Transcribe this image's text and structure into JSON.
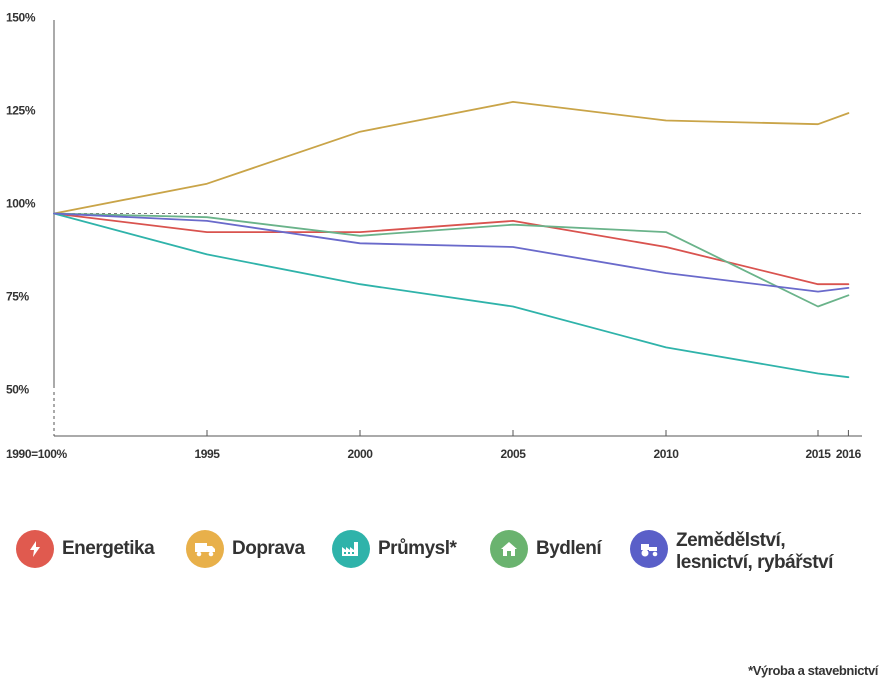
{
  "chart_data": {
    "type": "line",
    "x": [
      1990,
      1995,
      2000,
      2005,
      2010,
      2015,
      2016
    ],
    "x_tick_labels": [
      "1990=100%",
      "1995",
      "2000",
      "2005",
      "2010",
      "2015",
      "2016"
    ],
    "y_tick_values": [
      50,
      75,
      100,
      125,
      150
    ],
    "y_tick_labels": [
      "50%",
      "75%",
      "100%",
      "125%",
      "150%"
    ],
    "ylim": [
      35,
      150
    ],
    "reference_line": 100,
    "series": [
      {
        "name": "Energetika",
        "color": "#d9534f",
        "icon": "lightning-icon",
        "values": [
          100,
          95,
          95,
          98,
          91,
          81,
          81
        ]
      },
      {
        "name": "Doprava",
        "color": "#c9a448",
        "icon": "truck-icon",
        "values": [
          100,
          108,
          122,
          130,
          125,
          124,
          127
        ]
      },
      {
        "name": "Průmysl*",
        "color": "#2fb3aa",
        "icon": "factory-icon",
        "values": [
          100,
          89,
          81,
          75,
          64,
          57,
          56
        ]
      },
      {
        "name": "Bydlení",
        "color": "#6ab38a",
        "icon": "house-icon",
        "values": [
          100,
          99,
          94,
          97,
          95,
          75,
          78
        ]
      },
      {
        "name": "Zemědělství, lesnictví, rybářství",
        "color": "#6a6acb",
        "icon": "tractor-icon",
        "values": [
          100,
          98,
          92,
          91,
          84,
          79,
          80
        ]
      }
    ]
  },
  "legend": [
    {
      "label": "Energetika",
      "icon": "lightning-icon",
      "color": "#e05a4f"
    },
    {
      "label": "Doprava",
      "icon": "truck-icon",
      "color": "#e8b04a"
    },
    {
      "label": "Průmysl*",
      "icon": "factory-icon",
      "color": "#2fb3aa"
    },
    {
      "label": "Bydlení",
      "icon": "house-icon",
      "color": "#6ab36f"
    },
    {
      "label": "Zemědělství, lesnictví, rybářství",
      "icon": "tractor-icon",
      "color": "#5a5fc8"
    }
  ],
  "footnote": "*Výroba a stavebnictví"
}
